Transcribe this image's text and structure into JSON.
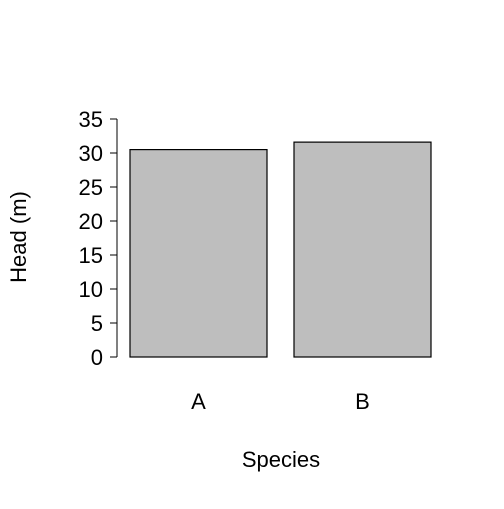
{
  "chart_data": {
    "type": "bar",
    "title": "",
    "xlabel": "Species",
    "ylabel": "Head (m)",
    "categories": [
      "A",
      "B"
    ],
    "values": [
      30.5,
      31.6
    ],
    "ylim": [
      0,
      35
    ],
    "yticks": [
      0,
      5,
      10,
      15,
      20,
      25,
      30,
      35
    ],
    "grid": false,
    "legend": "none",
    "bar_fill": "#bebebe",
    "bar_stroke": "#000000",
    "axis_color": "#000000"
  }
}
